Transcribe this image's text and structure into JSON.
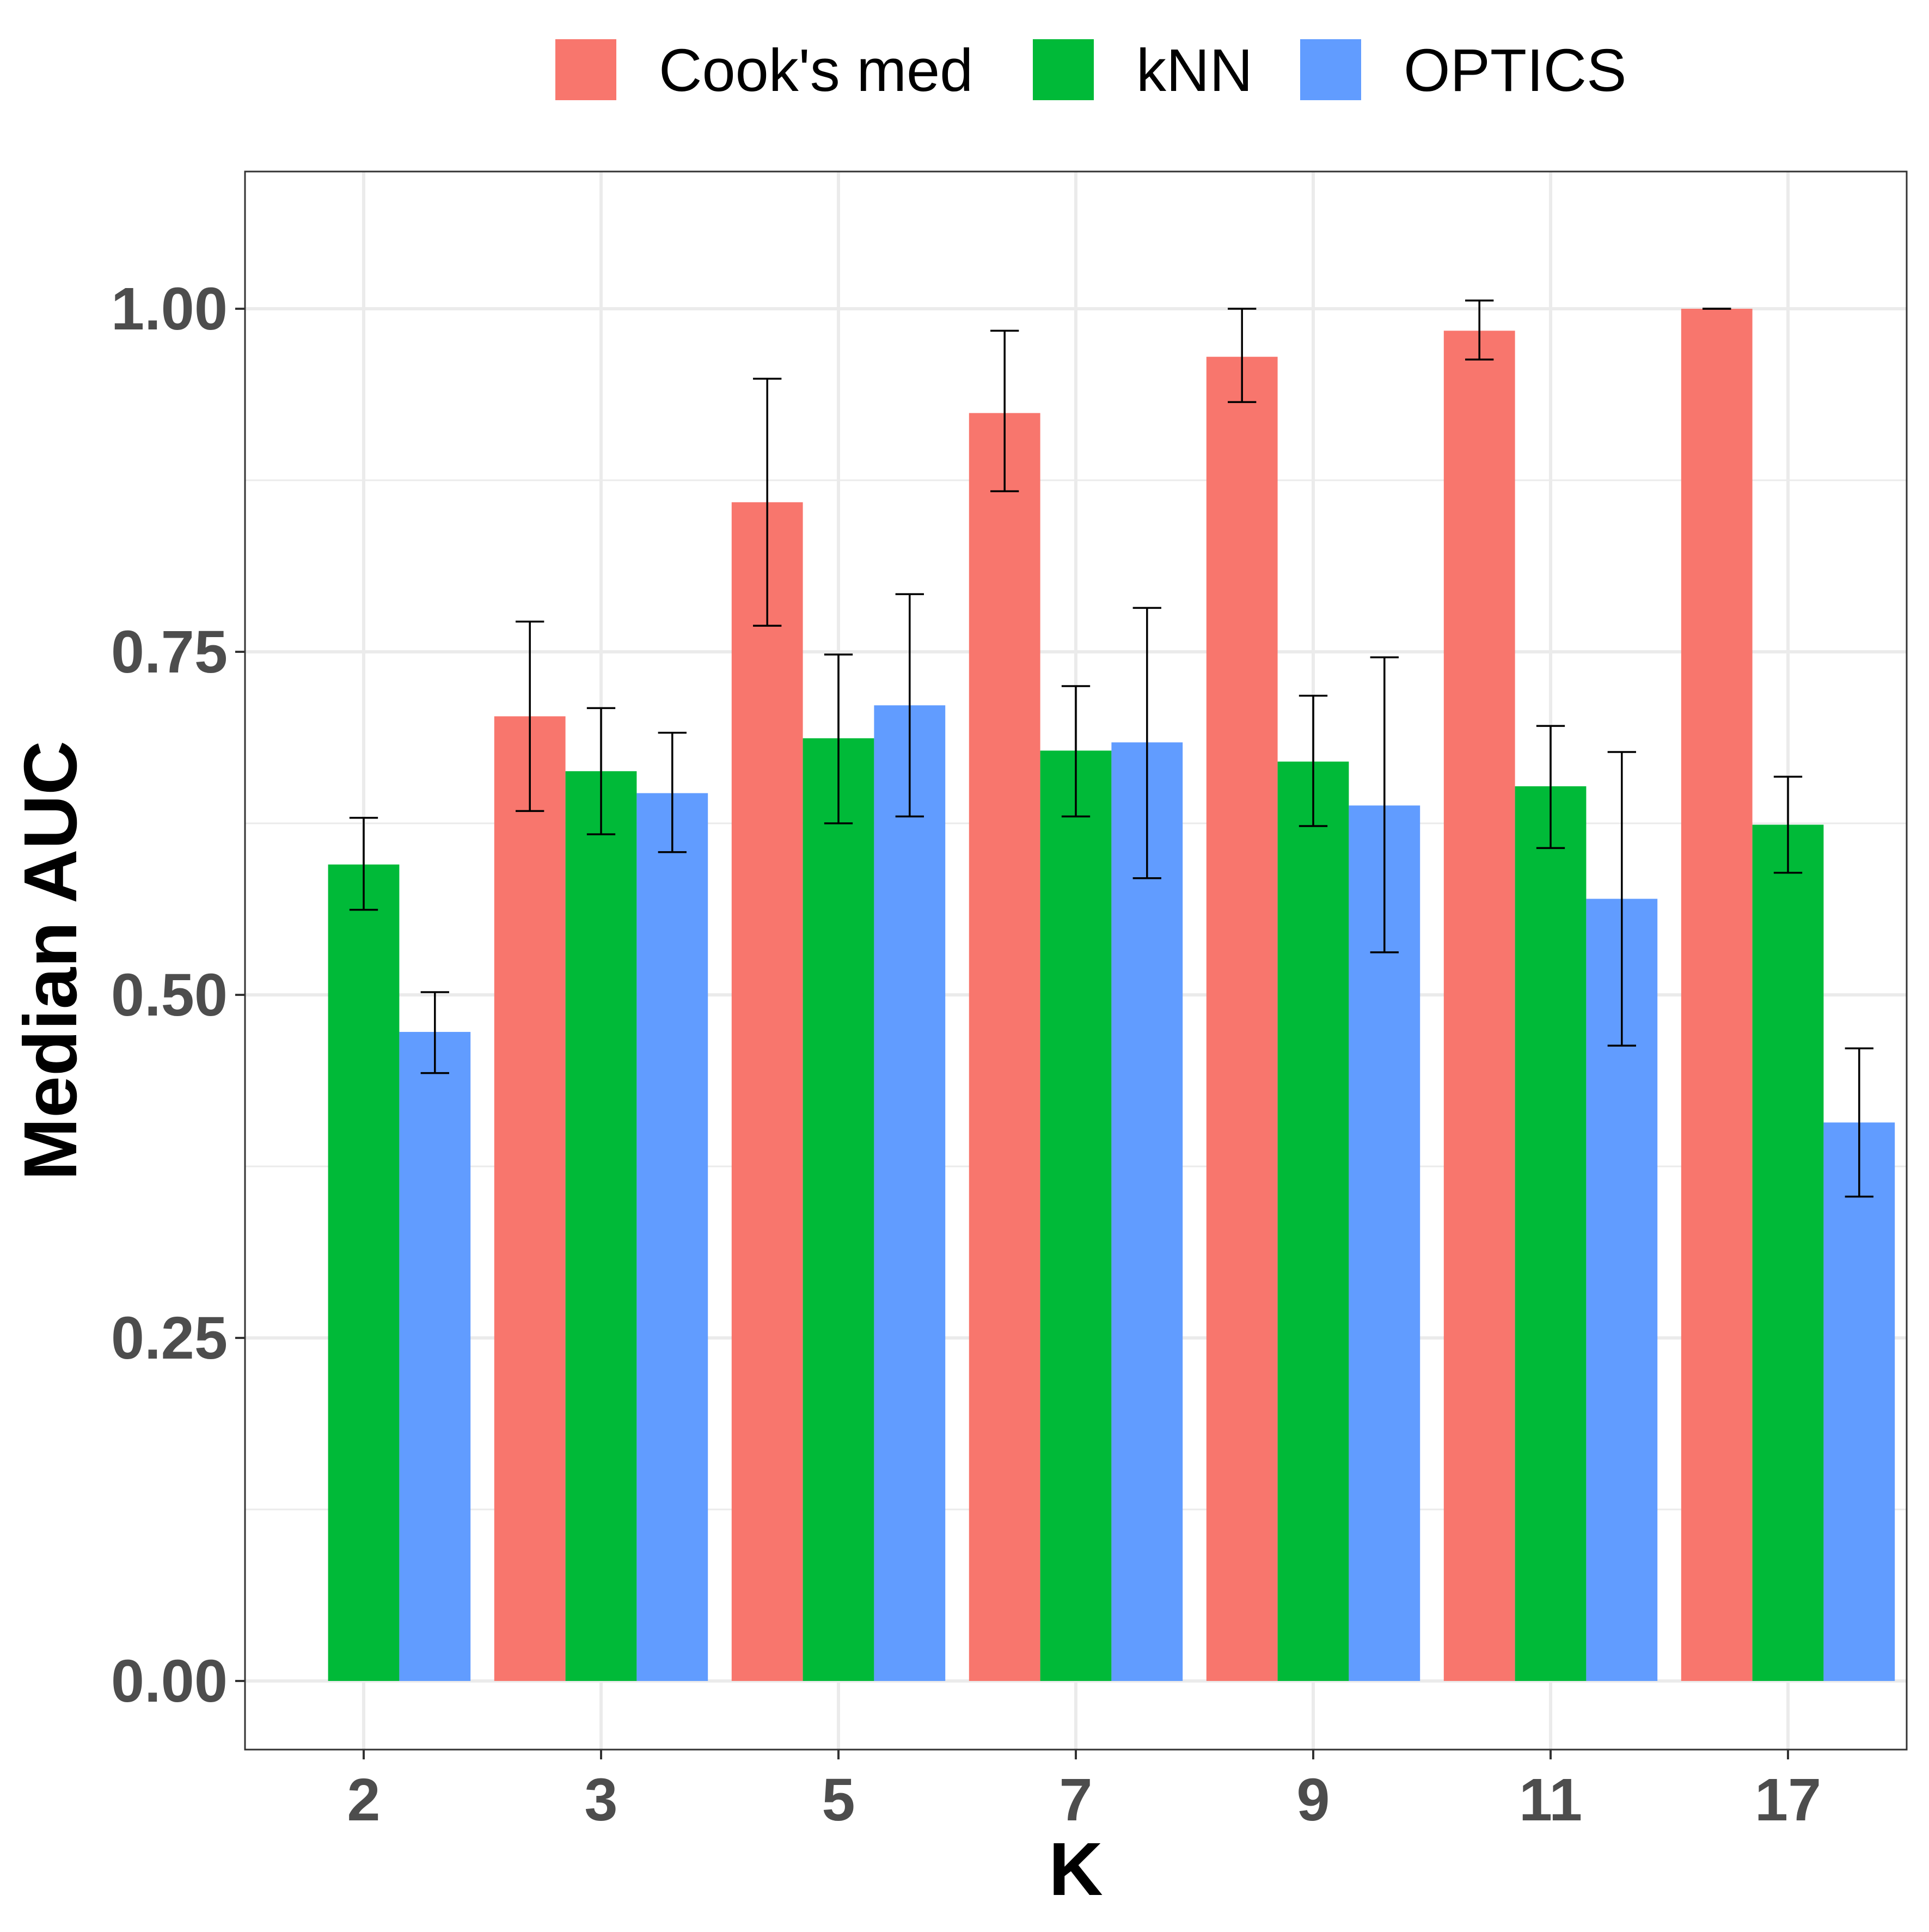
{
  "chart_data": {
    "type": "bar",
    "xlabel": "K",
    "ylabel": "Median AUC",
    "categories": [
      "2",
      "3",
      "5",
      "7",
      "9",
      "11",
      "17"
    ],
    "ylim": [
      -0.05,
      1.1
    ],
    "yticks": [
      0.0,
      0.25,
      0.5,
      0.75,
      1.0
    ],
    "ytick_labels": [
      "0.00",
      "0.25",
      "0.50",
      "0.75",
      "1.00"
    ],
    "legend": {
      "placement": "top"
    },
    "grid": true,
    "series": [
      {
        "name": "Cook's med",
        "color": "#F8766D",
        "values": [
          null,
          0.703,
          0.859,
          0.924,
          0.965,
          0.984,
          1.0
        ],
        "err_low": [
          null,
          0.634,
          0.769,
          0.867,
          0.932,
          0.963,
          1.0
        ],
        "err_high": [
          null,
          0.772,
          0.949,
          0.984,
          1.0,
          1.006,
          1.0
        ]
      },
      {
        "name": "kNN",
        "color": "#00BA38",
        "values": [
          0.595,
          0.663,
          0.687,
          0.678,
          0.67,
          0.652,
          0.624
        ],
        "err_low": [
          0.562,
          0.617,
          0.625,
          0.63,
          0.623,
          0.607,
          0.589
        ],
        "err_high": [
          0.629,
          0.709,
          0.748,
          0.725,
          0.718,
          0.696,
          0.659
        ]
      },
      {
        "name": "OPTICS",
        "color": "#619CFF",
        "values": [
          0.473,
          0.647,
          0.711,
          0.684,
          0.638,
          0.57,
          0.407
        ],
        "err_low": [
          0.443,
          0.604,
          0.63,
          0.585,
          0.531,
          0.463,
          0.353
        ],
        "err_high": [
          0.502,
          0.691,
          0.792,
          0.782,
          0.746,
          0.677,
          0.461
        ]
      }
    ]
  }
}
